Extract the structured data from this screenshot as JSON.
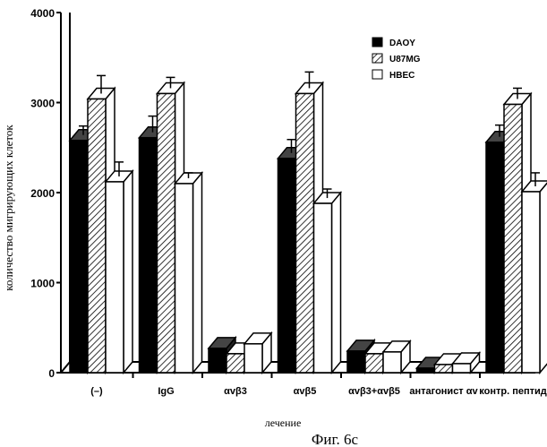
{
  "chart_data": {
    "type": "bar",
    "title": "",
    "xlabel": "лечение",
    "ylabel": "количество мигрирующих клеток",
    "ylim": [
      0,
      4000
    ],
    "yticks": [
      "0",
      "1000",
      "2000",
      "3000",
      "4000"
    ],
    "categories": [
      "(–)",
      "IgG",
      "αvβ3",
      "αvβ5",
      "αvβ3+αvβ5",
      "антагонист αv",
      "контр. пептид"
    ],
    "series": [
      {
        "name": "DAOY",
        "fill": "black",
        "values": [
          2580,
          2610,
          270,
          2380,
          240,
          50,
          2560
        ],
        "errors": [
          100,
          180,
          0,
          150,
          0,
          0,
          130
        ]
      },
      {
        "name": "U87MG",
        "fill": "hatched",
        "values": [
          3040,
          3100,
          210,
          3100,
          210,
          90,
          2980
        ],
        "errors": [
          200,
          120,
          0,
          180,
          0,
          0,
          120
        ]
      },
      {
        "name": "HBEC",
        "fill": "white",
        "values": [
          2120,
          2100,
          320,
          1880,
          230,
          100,
          2010
        ],
        "errors": [
          160,
          60,
          0,
          100,
          0,
          0,
          150
        ]
      }
    ],
    "legend_position": "top-right",
    "grid": false,
    "figure_caption": "Фиг. 6c"
  }
}
